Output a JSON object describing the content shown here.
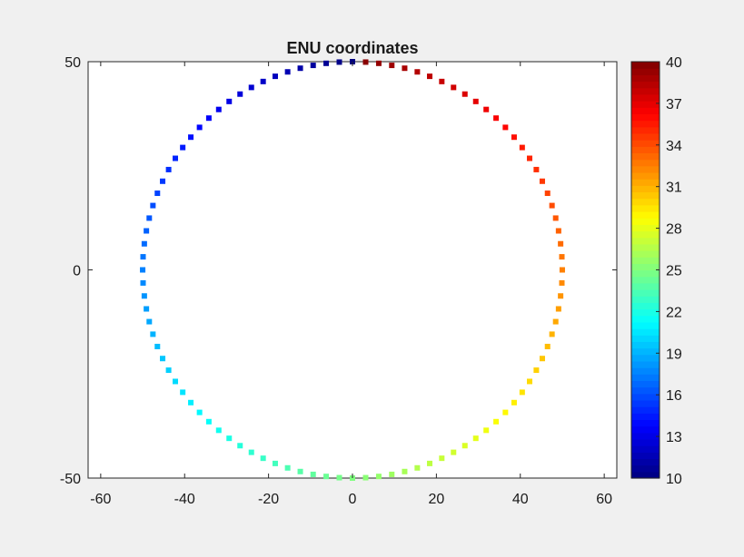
{
  "chart_data": {
    "type": "scatter",
    "title": "ENU coordinates",
    "xlabel": "",
    "ylabel": "",
    "xlim": [
      -63,
      63
    ],
    "ylim": [
      -50,
      50
    ],
    "xticks": [
      -60,
      -40,
      -20,
      0,
      20,
      40,
      60
    ],
    "yticks": [
      -50,
      0,
      50
    ],
    "grid": false,
    "marker": "square",
    "colormap": "jet",
    "circle": {
      "center": [
        0,
        0
      ],
      "radius": 50,
      "points": 100
    },
    "colorbar": {
      "limits": [
        10,
        40
      ],
      "ticks": [
        10,
        13,
        16,
        19,
        22,
        25,
        28,
        31,
        34,
        37,
        40
      ],
      "placement": "right"
    }
  },
  "colors": {
    "figure_background": "#f0f0f0",
    "axes_background": "#ffffff",
    "axes_edge": "#262626"
  }
}
